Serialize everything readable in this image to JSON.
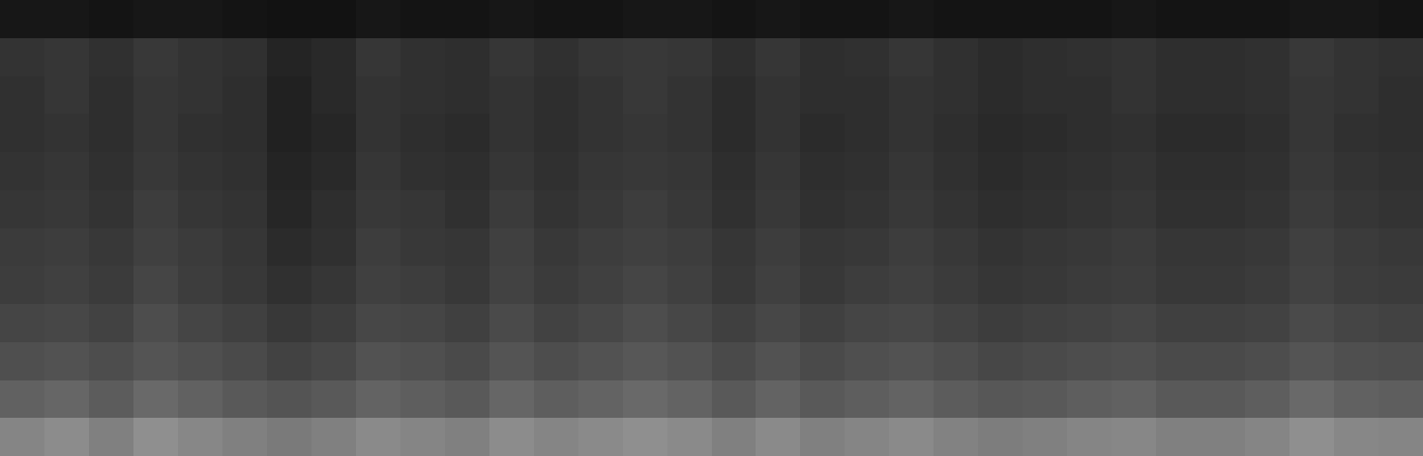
{
  "chart_data": {
    "type": "heatmap",
    "tick_labels": false,
    "zlim": [
      0,
      100
    ],
    "cells": [
      [
        9,
        9,
        8,
        9,
        9,
        8,
        7,
        7,
        9,
        8,
        8,
        9,
        8,
        8,
        9,
        9,
        8,
        9,
        8,
        8,
        9,
        8,
        8,
        8,
        8,
        9,
        8,
        8,
        8,
        9,
        9,
        8
      ],
      [
        20,
        21,
        19,
        22,
        20,
        19,
        14,
        16,
        21,
        19,
        18,
        21,
        19,
        21,
        22,
        21,
        18,
        21,
        18,
        19,
        21,
        19,
        17,
        18,
        19,
        20,
        18,
        18,
        19,
        22,
        20,
        19
      ],
      [
        19,
        21,
        18,
        21,
        20,
        18,
        13,
        16,
        20,
        19,
        18,
        20,
        18,
        20,
        22,
        20,
        17,
        20,
        18,
        18,
        20,
        19,
        17,
        18,
        18,
        20,
        18,
        18,
        19,
        21,
        20,
        18
      ],
      [
        19,
        20,
        18,
        21,
        19,
        18,
        13,
        15,
        20,
        18,
        17,
        20,
        18,
        20,
        21,
        20,
        17,
        20,
        17,
        18,
        20,
        18,
        16,
        17,
        18,
        19,
        17,
        17,
        18,
        21,
        19,
        18
      ],
      [
        20,
        21,
        19,
        22,
        20,
        19,
        14,
        16,
        21,
        19,
        18,
        21,
        19,
        21,
        22,
        21,
        18,
        21,
        18,
        19,
        21,
        19,
        17,
        18,
        19,
        20,
        18,
        18,
        19,
        22,
        20,
        19
      ],
      [
        21,
        22,
        20,
        24,
        21,
        20,
        15,
        18,
        22,
        21,
        19,
        23,
        20,
        22,
        24,
        22,
        19,
        22,
        19,
        20,
        22,
        20,
        18,
        19,
        20,
        21,
        19,
        19,
        20,
        23,
        21,
        20
      ],
      [
        23,
        24,
        22,
        25,
        23,
        21,
        17,
        19,
        24,
        22,
        21,
        25,
        22,
        24,
        25,
        24,
        21,
        24,
        21,
        22,
        24,
        22,
        20,
        21,
        22,
        23,
        21,
        21,
        22,
        25,
        23,
        22
      ],
      [
        24,
        25,
        23,
        27,
        24,
        22,
        19,
        21,
        25,
        24,
        22,
        26,
        23,
        25,
        27,
        25,
        22,
        25,
        22,
        24,
        25,
        23,
        21,
        22,
        23,
        24,
        22,
        22,
        23,
        26,
        24,
        23
      ],
      [
        27,
        28,
        26,
        30,
        27,
        25,
        22,
        24,
        28,
        27,
        25,
        29,
        26,
        28,
        30,
        28,
        25,
        28,
        25,
        27,
        28,
        26,
        24,
        25,
        26,
        27,
        25,
        25,
        26,
        29,
        27,
        26
      ],
      [
        31,
        32,
        30,
        33,
        31,
        29,
        26,
        28,
        32,
        31,
        29,
        33,
        30,
        32,
        34,
        32,
        29,
        32,
        29,
        31,
        32,
        30,
        28,
        29,
        30,
        31,
        29,
        29,
        30,
        33,
        31,
        30
      ],
      [
        38,
        40,
        36,
        41,
        38,
        35,
        33,
        35,
        39,
        37,
        35,
        40,
        37,
        39,
        41,
        39,
        35,
        39,
        35,
        37,
        39,
        36,
        34,
        35,
        37,
        38,
        35,
        35,
        37,
        41,
        38,
        37
      ],
      [
        52,
        55,
        50,
        56,
        53,
        50,
        48,
        50,
        54,
        52,
        50,
        55,
        52,
        54,
        56,
        54,
        50,
        54,
        50,
        52,
        54,
        51,
        49,
        50,
        52,
        53,
        50,
        50,
        52,
        56,
        53,
        52
      ]
    ]
  }
}
